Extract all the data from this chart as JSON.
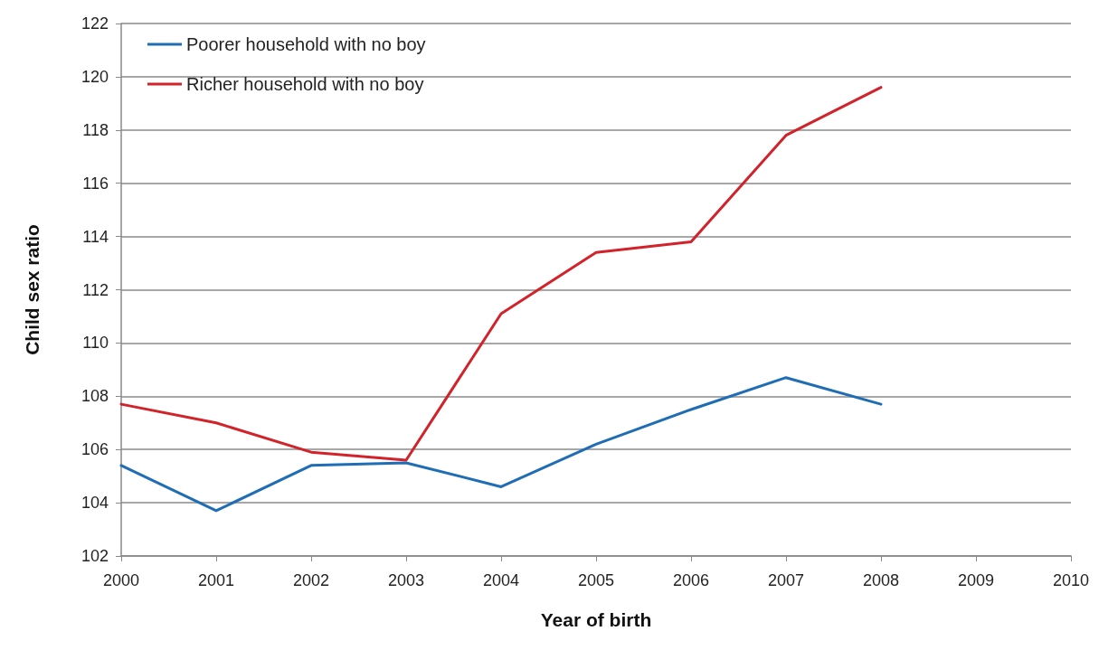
{
  "chart_data": {
    "type": "line",
    "xlabel": "Year of birth",
    "ylabel": "Child sex ratio",
    "x": [
      2000,
      2001,
      2002,
      2003,
      2004,
      2005,
      2006,
      2007,
      2008
    ],
    "series": [
      {
        "name": "Poorer household with no boy",
        "color": "#1f6db5",
        "values": [
          105.4,
          103.7,
          105.4,
          105.5,
          104.6,
          106.2,
          107.5,
          108.7,
          107.7
        ]
      },
      {
        "name": "Richer household with no boy",
        "color": "#d2232a",
        "values": [
          107.7,
          107.0,
          105.9,
          105.6,
          111.1,
          113.4,
          113.8,
          117.8,
          119.6
        ]
      }
    ],
    "xlim": [
      2000,
      2010
    ],
    "xticks": [
      2000,
      2001,
      2002,
      2003,
      2004,
      2005,
      2006,
      2007,
      2008,
      2009,
      2010
    ],
    "ylim": [
      102,
      122
    ],
    "yticks": [
      102,
      104,
      106,
      108,
      110,
      112,
      114,
      116,
      118,
      120,
      122
    ],
    "grid": "y",
    "legend": "top left",
    "marker": "none",
    "line_style": "solid"
  }
}
